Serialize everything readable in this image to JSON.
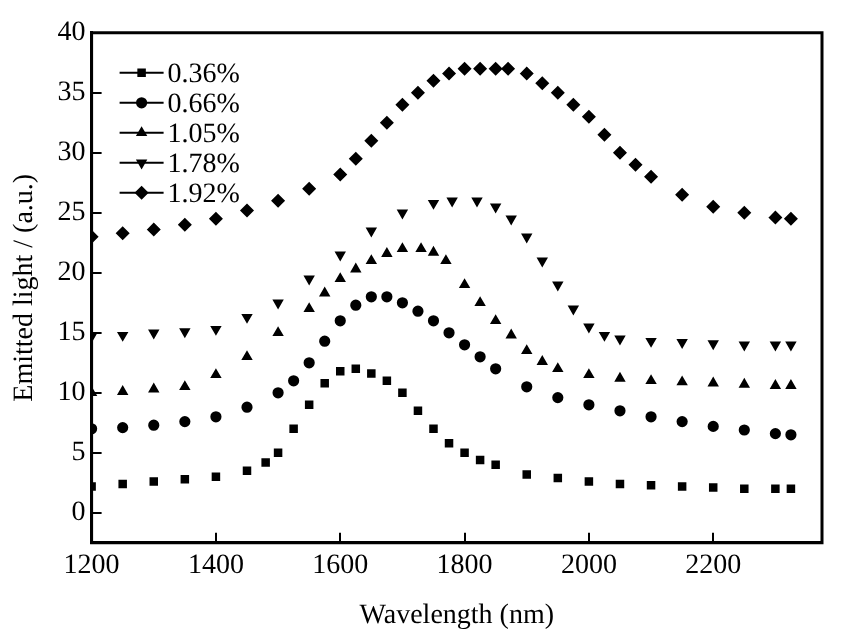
{
  "chart_data": {
    "type": "scatter",
    "xlabel": "Wavelength (nm)",
    "ylabel": "Emitted light / (a.u.)",
    "xlim": [
      1200,
      2375
    ],
    "xticks": [
      1200,
      1400,
      1600,
      1800,
      2000,
      2200
    ],
    "ylim": [
      -2.5,
      40
    ],
    "yticks": [
      0,
      5,
      10,
      15,
      20,
      25,
      30,
      35,
      40
    ],
    "grid": false,
    "legend": "top left",
    "series": [
      {
        "name": "0.36%",
        "color": "#000000",
        "marker": "square",
        "x": [
          1200,
          1250,
          1300,
          1350,
          1400,
          1450,
          1480,
          1500,
          1525,
          1550,
          1575,
          1600,
          1625,
          1650,
          1675,
          1700,
          1725,
          1750,
          1775,
          1800,
          1825,
          1850,
          1900,
          1950,
          2000,
          2050,
          2100,
          2150,
          2200,
          2250,
          2300,
          2325
        ],
        "values": [
          2.2,
          2.4,
          2.6,
          2.8,
          3.0,
          3.5,
          4.2,
          5,
          7,
          9,
          10.8,
          11.8,
          12,
          11.6,
          11,
          10,
          8.5,
          7,
          5.8,
          5,
          4.4,
          4,
          3.2,
          2.9,
          2.6,
          2.4,
          2.3,
          2.2,
          2.1,
          2.0,
          2.0,
          2.0
        ]
      },
      {
        "name": "0.66%",
        "color": "#000000",
        "marker": "circle",
        "x": [
          1200,
          1250,
          1300,
          1350,
          1400,
          1450,
          1500,
          1525,
          1550,
          1575,
          1600,
          1625,
          1650,
          1675,
          1700,
          1725,
          1750,
          1775,
          1800,
          1825,
          1850,
          1900,
          1950,
          2000,
          2050,
          2100,
          2150,
          2200,
          2250,
          2300,
          2325
        ],
        "values": [
          7,
          7.1,
          7.3,
          7.6,
          8,
          8.8,
          10,
          11,
          12.5,
          14.3,
          16,
          17.3,
          18,
          18,
          17.5,
          16.8,
          16,
          15,
          14,
          13,
          12,
          10.5,
          9.6,
          9,
          8.5,
          8,
          7.6,
          7.2,
          6.9,
          6.6,
          6.5
        ]
      },
      {
        "name": "1.05%",
        "color": "#000000",
        "marker": "triangle",
        "x": [
          1200,
          1250,
          1300,
          1350,
          1400,
          1450,
          1500,
          1550,
          1575,
          1600,
          1625,
          1650,
          1675,
          1700,
          1730,
          1750,
          1770,
          1800,
          1825,
          1850,
          1875,
          1900,
          1925,
          1950,
          2000,
          2050,
          2100,
          2150,
          2200,
          2250,
          2300,
          2325
        ],
        "values": [
          10,
          10.1,
          10.3,
          10.5,
          11.5,
          13,
          15,
          17,
          18.3,
          19.5,
          20.3,
          21,
          21.6,
          22,
          22,
          21.7,
          21,
          19,
          17.5,
          16,
          14.8,
          13.5,
          12.6,
          12,
          11.5,
          11.2,
          11,
          10.9,
          10.8,
          10.7,
          10.6,
          10.6
        ]
      },
      {
        "name": "1.78%",
        "color": "#000000",
        "marker": "triangle-down",
        "x": [
          1200,
          1250,
          1300,
          1350,
          1400,
          1450,
          1500,
          1550,
          1600,
          1650,
          1700,
          1750,
          1780,
          1820,
          1850,
          1875,
          1900,
          1925,
          1950,
          1975,
          2000,
          2025,
          2050,
          2100,
          2150,
          2200,
          2250,
          2300,
          2325
        ],
        "values": [
          14.7,
          14.8,
          15,
          15.1,
          15.3,
          16.3,
          17.5,
          19.5,
          21.5,
          23.5,
          25,
          25.8,
          26,
          26,
          25.5,
          24.5,
          23,
          21,
          19,
          17,
          15.5,
          14.8,
          14.5,
          14.3,
          14.2,
          14.1,
          14,
          14,
          14
        ]
      },
      {
        "name": "1.92%",
        "color": "#000000",
        "marker": "diamond",
        "x": [
          1200,
          1250,
          1300,
          1350,
          1400,
          1450,
          1500,
          1550,
          1600,
          1625,
          1650,
          1675,
          1700,
          1725,
          1750,
          1775,
          1800,
          1825,
          1850,
          1870,
          1900,
          1925,
          1950,
          1975,
          2000,
          2025,
          2050,
          2075,
          2100,
          2150,
          2200,
          2250,
          2300,
          2325
        ],
        "values": [
          23,
          23.3,
          23.6,
          24,
          24.5,
          25.2,
          26,
          27,
          28.2,
          29.5,
          31,
          32.5,
          34,
          35,
          36,
          36.6,
          37,
          37,
          37,
          37,
          36.6,
          35.8,
          35,
          34,
          33,
          31.5,
          30,
          29,
          28,
          26.5,
          25.5,
          25,
          24.6,
          24.5
        ]
      }
    ]
  }
}
